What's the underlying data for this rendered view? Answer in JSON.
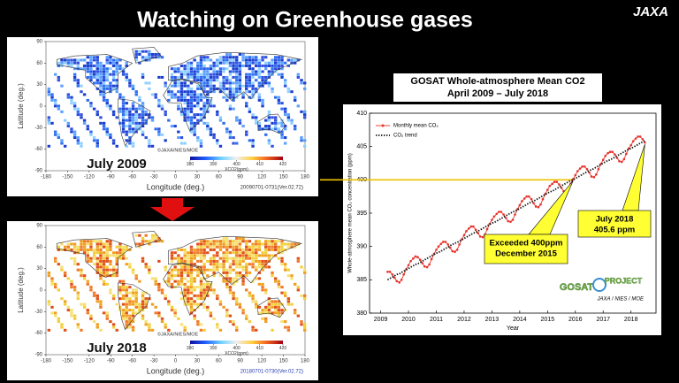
{
  "header": {
    "title": "Watching on Greenhouse gases",
    "logo": "JAXA"
  },
  "maps": [
    {
      "caption": "July 2009",
      "credit": "©JAXA/NIES/MOE",
      "xlabel": "Longitude (deg.)",
      "ylabel": "Latitude (deg.)",
      "xticks": [
        -180,
        -150,
        -120,
        -90,
        -60,
        -30,
        0,
        30,
        60,
        90,
        120,
        150,
        180
      ],
      "yticks": [
        90,
        60,
        30,
        0,
        -30,
        -60,
        -90
      ],
      "colorbar_ticks": [
        380,
        390,
        400,
        410,
        420
      ],
      "colorbar_label": "XCO2(ppm)",
      "file_label": "20090701-0731(Ver.02.72)",
      "colors": [
        "#1a3fd0",
        "#2f6ff0",
        "#5aa0ff",
        "#8fd0ff",
        "#3050e0"
      ]
    },
    {
      "caption": "July 2018",
      "credit": "©JAXA/NIES/MOE",
      "xlabel": "Longitude (deg.)",
      "ylabel": "Latitude (deg.)",
      "xticks": [
        -180,
        -150,
        -120,
        -90,
        -60,
        -30,
        0,
        30,
        60,
        90,
        120,
        150,
        180
      ],
      "yticks": [
        90,
        60,
        30,
        0,
        -30,
        -60,
        -90
      ],
      "colorbar_ticks": [
        380,
        390,
        400,
        410,
        420
      ],
      "colorbar_label": "XCO2(ppm)",
      "file_label": "20180701-0730(Ver.02.72)",
      "colors": [
        "#f0a020",
        "#f07a28",
        "#f2cf3a",
        "#e0501c",
        "#f5e070"
      ]
    }
  ],
  "chart_data": {
    "type": "line",
    "title": "GOSAT Whole-atmosphere Mean CO2",
    "subtitle": "April 2009 – July 2018",
    "xlabel": "Year",
    "ylabel": "Whole-atmosphere mean CO₂ concentration (ppm)",
    "x": [
      2009.25,
      2009.33,
      2009.42,
      2009.5,
      2009.58,
      2009.67,
      2009.75,
      2009.83,
      2009.92,
      2010.0,
      2010.08,
      2010.17,
      2010.25,
      2010.33,
      2010.42,
      2010.5,
      2010.58,
      2010.67,
      2010.75,
      2010.83,
      2010.92,
      2011.0,
      2011.08,
      2011.17,
      2011.25,
      2011.33,
      2011.42,
      2011.5,
      2011.58,
      2011.67,
      2011.75,
      2011.83,
      2011.92,
      2012.0,
      2012.08,
      2012.17,
      2012.25,
      2012.33,
      2012.42,
      2012.5,
      2012.58,
      2012.67,
      2012.75,
      2012.83,
      2012.92,
      2013.0,
      2013.08,
      2013.17,
      2013.25,
      2013.33,
      2013.42,
      2013.5,
      2013.58,
      2013.67,
      2013.75,
      2013.83,
      2013.92,
      2014.0,
      2014.08,
      2014.17,
      2014.25,
      2014.33,
      2014.42,
      2014.5,
      2014.58,
      2014.67,
      2014.75,
      2014.83,
      2014.92,
      2015.0,
      2015.08,
      2015.17,
      2015.25,
      2015.33,
      2015.42,
      2015.5,
      2015.58,
      2015.67,
      2015.75,
      2015.83,
      2015.92,
      2016.0,
      2016.08,
      2016.17,
      2016.25,
      2016.33,
      2016.42,
      2016.5,
      2016.58,
      2016.67,
      2016.75,
      2016.83,
      2016.92,
      2017.0,
      2017.08,
      2017.17,
      2017.25,
      2017.33,
      2017.42,
      2017.5,
      2017.58,
      2017.67,
      2017.75,
      2017.83,
      2017.92,
      2018.0,
      2018.08,
      2018.17,
      2018.25,
      2018.33,
      2018.42,
      2018.5
    ],
    "xlim": [
      2008.6,
      2018.9
    ],
    "xticks": [
      2009,
      2010,
      2011,
      2012,
      2013,
      2014,
      2015,
      2016,
      2017,
      2018
    ],
    "ylim": [
      380,
      410
    ],
    "yticks": [
      380,
      385,
      390,
      395,
      400,
      405,
      410
    ],
    "reference_line": 400,
    "reference_color": "#f2c200",
    "series": [
      {
        "name": "Monthly mean CO₂",
        "color": "#e8312a",
        "markers": true,
        "values": [
          386.2,
          386.2,
          385.8,
          385.3,
          384.8,
          384.6,
          385.0,
          385.8,
          386.6,
          387.2,
          387.8,
          388.2,
          388.5,
          388.4,
          388.0,
          387.5,
          387.0,
          386.9,
          387.3,
          388.1,
          388.9,
          389.5,
          390.0,
          390.4,
          390.7,
          390.7,
          390.3,
          389.8,
          389.3,
          389.2,
          389.5,
          390.3,
          391.1,
          391.7,
          392.3,
          392.7,
          393.0,
          393.0,
          392.5,
          392.0,
          391.5,
          391.4,
          391.8,
          392.6,
          393.4,
          394.0,
          394.5,
          394.9,
          395.2,
          395.2,
          394.8,
          394.3,
          393.8,
          393.7,
          394.0,
          394.8,
          395.6,
          396.2,
          396.8,
          397.2,
          397.5,
          397.5,
          397.1,
          396.5,
          396.0,
          395.9,
          396.3,
          397.1,
          397.9,
          398.5,
          399.1,
          399.4,
          399.7,
          399.7,
          399.3,
          398.8,
          398.3,
          398.2,
          398.6,
          399.4,
          400.1,
          400.7,
          401.3,
          401.7,
          402.0,
          402.0,
          401.6,
          401.1,
          400.5,
          400.4,
          400.8,
          401.6,
          402.4,
          403.0,
          403.6,
          404.0,
          404.2,
          404.2,
          403.8,
          403.3,
          402.8,
          402.7,
          403.1,
          403.9,
          404.7,
          405.2,
          405.8,
          406.2,
          406.5,
          406.5,
          406.1,
          405.6
        ]
      },
      {
        "name": "CO₂ trend",
        "color": "#111111",
        "dashed": true,
        "values": [
          385.0,
          385.2,
          385.4,
          385.6,
          385.8,
          385.9,
          386.1,
          386.3,
          386.5,
          386.7,
          386.9,
          387.1,
          387.3,
          387.4,
          387.6,
          387.8,
          388.0,
          388.2,
          388.4,
          388.6,
          388.8,
          389.0,
          389.1,
          389.3,
          389.5,
          389.7,
          389.9,
          390.1,
          390.3,
          390.5,
          390.6,
          390.8,
          391.0,
          391.2,
          391.4,
          391.6,
          391.8,
          392.0,
          392.1,
          392.3,
          392.5,
          392.7,
          392.9,
          393.1,
          393.3,
          393.5,
          393.6,
          393.8,
          394.0,
          394.2,
          394.4,
          394.6,
          394.8,
          395.0,
          395.2,
          395.3,
          395.5,
          395.7,
          395.9,
          396.1,
          396.3,
          396.5,
          396.7,
          396.8,
          397.0,
          397.2,
          397.4,
          397.6,
          397.8,
          398.0,
          398.2,
          398.3,
          398.5,
          398.7,
          398.9,
          399.1,
          399.3,
          399.5,
          399.7,
          399.9,
          400.0,
          400.2,
          400.4,
          400.6,
          400.8,
          401.0,
          401.2,
          401.4,
          401.5,
          401.7,
          401.9,
          402.1,
          402.3,
          402.5,
          402.7,
          402.9,
          403.0,
          403.2,
          403.4,
          403.6,
          403.8,
          404.0,
          404.2,
          404.4,
          404.6,
          404.7,
          404.9,
          405.1,
          405.3,
          405.5,
          405.7,
          405.9
        ]
      }
    ],
    "annotations": [
      {
        "lines": [
          "Exceeded 400ppm",
          "December 2015"
        ],
        "color": "#ffff33"
      },
      {
        "lines": [
          "July 2018",
          "405.6 ppm"
        ],
        "color": "#ffff33"
      }
    ],
    "logo": {
      "name": "GOSAT",
      "project": "PROJECT",
      "credit": "JAXA / NIES / MOE"
    }
  }
}
